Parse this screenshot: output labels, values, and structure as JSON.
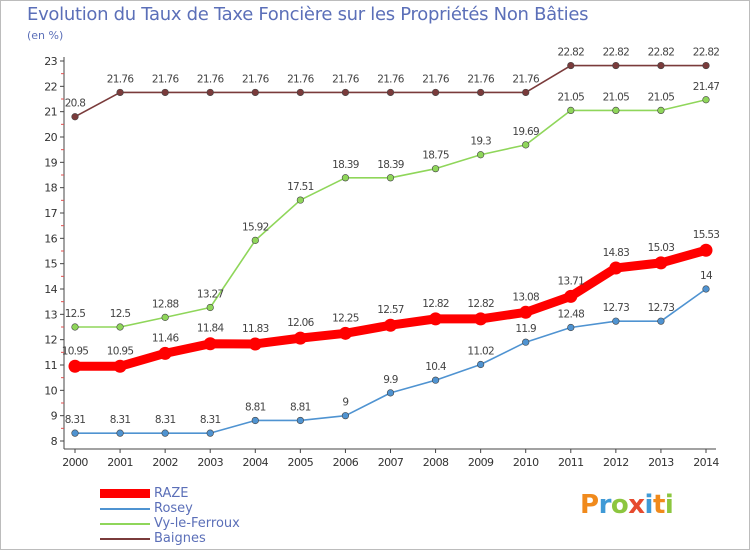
{
  "title": "Evolution du Taux de Taxe Foncière sur les Propriétés Non Bâties",
  "unit": "(en %)",
  "brand": "Proxiti",
  "chart_data": {
    "type": "line",
    "x": [
      "2000",
      "2001",
      "2002",
      "2003",
      "2004",
      "2005",
      "2006",
      "2007",
      "2008",
      "2009",
      "2010",
      "2011",
      "2012",
      "2013",
      "2014"
    ],
    "ylim": [
      8,
      23
    ],
    "yticks": [
      8,
      9,
      10,
      11,
      12,
      13,
      14,
      15,
      16,
      17,
      18,
      19,
      20,
      21,
      22,
      23
    ],
    "grid": false,
    "legend": "bottom-left",
    "series": [
      {
        "name": "RAZE",
        "color": "#ff0000",
        "values": [
          10.95,
          10.95,
          11.46,
          11.84,
          11.83,
          12.06,
          12.25,
          12.57,
          12.82,
          12.82,
          13.08,
          13.71,
          14.83,
          15.03,
          15.53
        ],
        "labels": [
          "10.95",
          "10.95",
          "11.46",
          "11.84",
          "11.83",
          "12.06",
          "12.25",
          "12.57",
          "12.82",
          "12.82",
          "13.08",
          "13.71",
          "14.83",
          "15.03",
          "15.53"
        ]
      },
      {
        "name": "Rosey",
        "color": "#4f93d1",
        "values": [
          8.31,
          8.31,
          8.31,
          8.31,
          8.81,
          8.81,
          9,
          9.9,
          10.4,
          11.02,
          11.9,
          12.48,
          12.73,
          12.73,
          14
        ],
        "labels": [
          "8.31",
          "8.31",
          "8.31",
          "8.31",
          "8.81",
          "8.81",
          "9",
          "9.9",
          "10.4",
          "11.02",
          "11.9",
          "12.48",
          "12.73",
          "12.73",
          "14"
        ]
      },
      {
        "name": "Vy-le-Ferroux",
        "color": "#8fd65a",
        "values": [
          12.5,
          12.5,
          12.88,
          13.27,
          15.92,
          17.51,
          18.39,
          18.39,
          18.75,
          19.3,
          19.69,
          21.05,
          21.05,
          21.05,
          21.47
        ],
        "labels": [
          "12.5",
          "12.5",
          "12.88",
          "13.27",
          "15.92",
          "17.51",
          "18.39",
          "18.39",
          "18.75",
          "19.3",
          "19.69",
          "21.05",
          "21.05",
          "21.05",
          "21.47"
        ]
      },
      {
        "name": "Baignes",
        "color": "#7a3b3b",
        "values": [
          20.8,
          21.76,
          21.76,
          21.76,
          21.76,
          21.76,
          21.76,
          21.76,
          21.76,
          21.76,
          21.76,
          22.82,
          22.82,
          22.82,
          22.82
        ],
        "labels": [
          "20.8",
          "21.76",
          "21.76",
          "21.76",
          "21.76",
          "21.76",
          "21.76",
          "21.76",
          "21.76",
          "21.76",
          "21.76",
          "22.82",
          "22.82",
          "22.82",
          "22.82"
        ]
      }
    ]
  }
}
